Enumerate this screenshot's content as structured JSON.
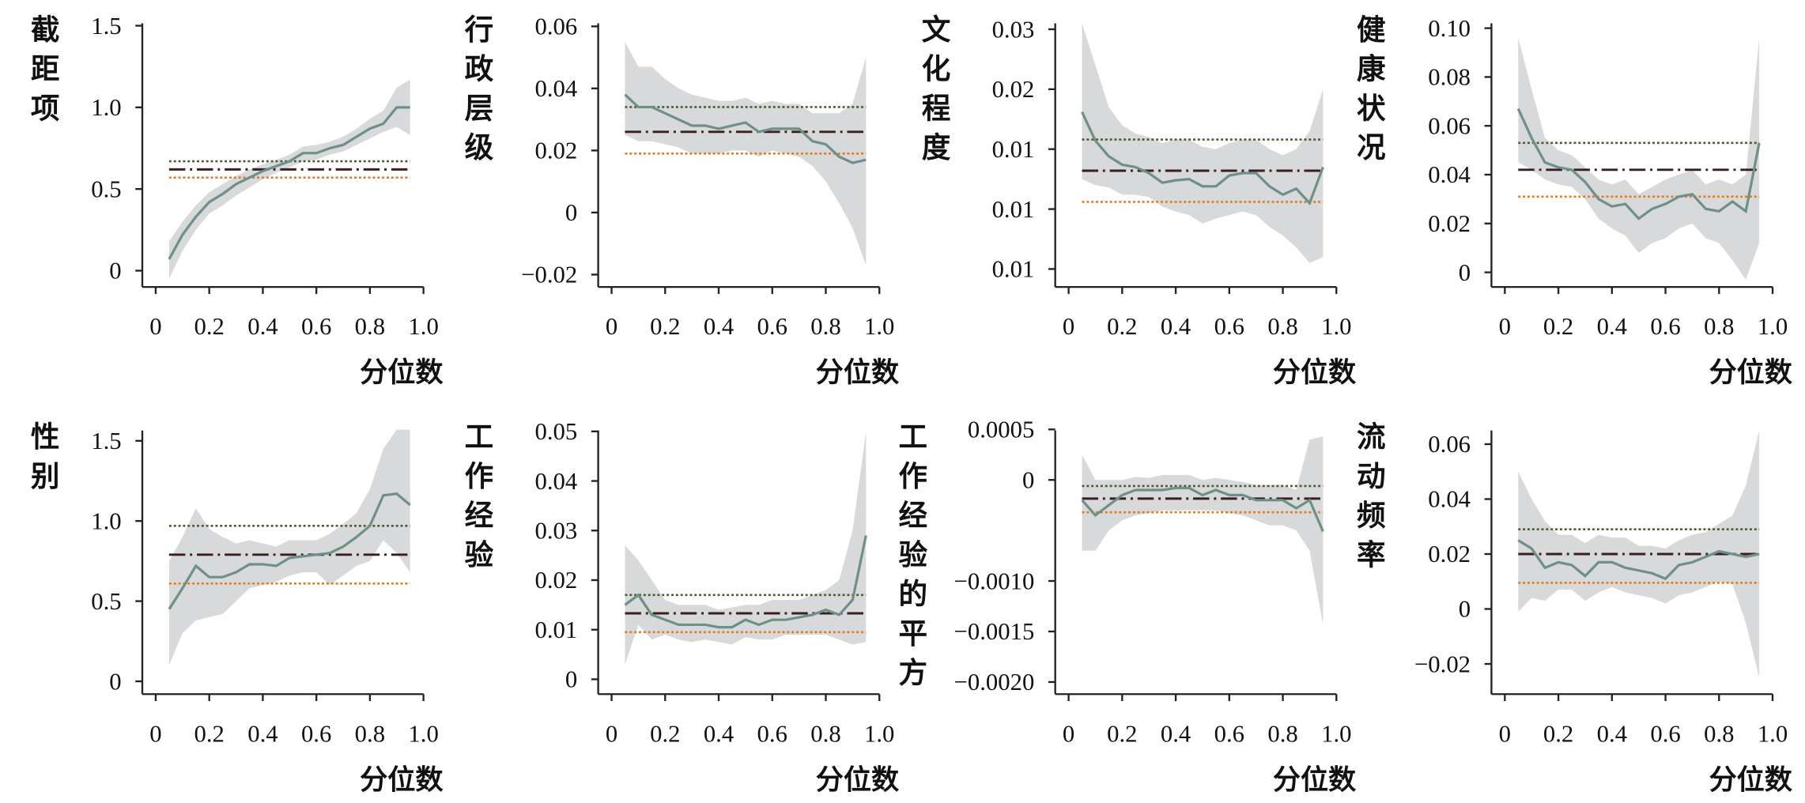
{
  "chart_data": [
    {
      "type": "quantile",
      "ylabel": "截距项",
      "xlabel": "分位数",
      "x": [
        0.05,
        0.1,
        0.15,
        0.2,
        0.25,
        0.3,
        0.35,
        0.4,
        0.45,
        0.5,
        0.55,
        0.6,
        0.65,
        0.7,
        0.75,
        0.8,
        0.85,
        0.9,
        0.95
      ],
      "values": [
        0.07,
        0.22,
        0.33,
        0.42,
        0.47,
        0.53,
        0.57,
        0.61,
        0.64,
        0.67,
        0.72,
        0.72,
        0.75,
        0.77,
        0.82,
        0.87,
        0.9,
        1.0,
        1.0
      ],
      "lower": [
        -0.05,
        0.12,
        0.25,
        0.35,
        0.4,
        0.46,
        0.51,
        0.56,
        0.6,
        0.63,
        0.67,
        0.68,
        0.71,
        0.73,
        0.77,
        0.81,
        0.85,
        0.88,
        0.83
      ],
      "upper": [
        0.18,
        0.3,
        0.4,
        0.48,
        0.53,
        0.58,
        0.62,
        0.65,
        0.68,
        0.71,
        0.76,
        0.77,
        0.79,
        0.82,
        0.87,
        0.93,
        0.98,
        1.12,
        1.17
      ],
      "ols": 0.62,
      "ols_lower": 0.57,
      "ols_upper": 0.67,
      "xlim": [
        -0.05,
        1.0
      ],
      "xticks": [
        0,
        0.2,
        0.4,
        0.6,
        0.8,
        {
          "value": 1,
          "label": "1.0"
        }
      ],
      "ylim": [
        -0.1,
        1.515
      ],
      "yticks": [
        0,
        0.5,
        {
          "value": 1,
          "label": "1.0"
        },
        1.5
      ],
      "colors": {
        "line": "#6f9088",
        "band": "#d8d9db",
        "ols": "#3a1f22",
        "ols_dot": "#c0392b",
        "ols_upper": "#4d5a2a",
        "ols_lower": "#e07b1f"
      }
    },
    {
      "type": "quantile",
      "ylabel": "行政层级",
      "xlabel": "分位数",
      "x": [
        0.05,
        0.1,
        0.15,
        0.2,
        0.25,
        0.3,
        0.35,
        0.4,
        0.45,
        0.5,
        0.55,
        0.6,
        0.65,
        0.7,
        0.75,
        0.8,
        0.85,
        0.9,
        0.95
      ],
      "values": [
        0.038,
        0.034,
        0.034,
        0.032,
        0.03,
        0.028,
        0.028,
        0.027,
        0.028,
        0.029,
        0.026,
        0.027,
        0.027,
        0.027,
        0.023,
        0.022,
        0.018,
        0.016,
        0.017
      ],
      "lower": [
        0.025,
        0.023,
        0.023,
        0.022,
        0.021,
        0.019,
        0.019,
        0.019,
        0.02,
        0.02,
        0.018,
        0.02,
        0.019,
        0.018,
        0.015,
        0.01,
        0.003,
        -0.005,
        -0.017
      ],
      "upper": [
        0.055,
        0.047,
        0.047,
        0.043,
        0.04,
        0.038,
        0.037,
        0.036,
        0.036,
        0.037,
        0.035,
        0.036,
        0.035,
        0.035,
        0.032,
        0.032,
        0.032,
        0.035,
        0.05
      ],
      "ols": 0.026,
      "ols_lower": 0.019,
      "ols_upper": 0.034,
      "xlim": [
        -0.05,
        1.0
      ],
      "xticks": [
        0,
        0.2,
        0.4,
        0.6,
        0.8,
        {
          "value": 1,
          "label": "1.0"
        }
      ],
      "ylim": [
        -0.024,
        0.061
      ],
      "yticks": [
        {
          "value": -0.02,
          "label": "−0.02"
        },
        0,
        0.02,
        0.04,
        0.06
      ],
      "colors": {
        "line": "#6f9088",
        "band": "#d8d9db",
        "ols": "#3a1f22",
        "ols_dot": "#c0392b",
        "ols_upper": "#4d5a2a",
        "ols_lower": "#e07b1f"
      }
    },
    {
      "type": "quantile",
      "ylabel": "文化程度",
      "xlabel": "分位数",
      "x": [
        0.05,
        0.1,
        0.15,
        0.2,
        0.25,
        0.3,
        0.35,
        0.4,
        0.45,
        0.5,
        0.55,
        0.6,
        0.65,
        0.7,
        0.75,
        0.8,
        0.85,
        0.9,
        0.95
      ],
      "values": [
        0.0181,
        0.0157,
        0.0144,
        0.0137,
        0.0135,
        0.013,
        0.0122,
        0.0124,
        0.0125,
        0.0119,
        0.0119,
        0.0128,
        0.013,
        0.013,
        0.0119,
        0.0112,
        0.0117,
        0.0105,
        0.0135
      ],
      "lower": [
        0.0125,
        0.012,
        0.0118,
        0.0112,
        0.0112,
        0.011,
        0.0102,
        0.0098,
        0.0095,
        0.0088,
        0.0092,
        0.0095,
        0.0098,
        0.0095,
        0.0085,
        0.0078,
        0.0068,
        0.0055,
        0.006
      ],
      "upper": [
        0.0255,
        0.022,
        0.0185,
        0.017,
        0.0163,
        0.016,
        0.0155,
        0.0158,
        0.0158,
        0.0152,
        0.015,
        0.0155,
        0.0158,
        0.0158,
        0.015,
        0.0145,
        0.015,
        0.0165,
        0.02
      ],
      "ols": 0.0132,
      "ols_lower": 0.0106,
      "ols_upper": 0.0158,
      "xlim": [
        -0.05,
        1.0
      ],
      "xticks": [
        0,
        0.2,
        0.4,
        0.6,
        0.8,
        {
          "value": 1,
          "label": "1.0"
        }
      ],
      "ylim": [
        0.0035,
        0.0255
      ],
      "yticks": [
        {
          "value": 0.005,
          "label": "0.01"
        },
        0.01,
        {
          "value": 0.015,
          "label": "0.01"
        },
        0.02,
        {
          "value": 0.025,
          "label": "0.03"
        }
      ],
      "colors": {
        "line": "#6f9088",
        "band": "#d8d9db",
        "ols": "#3a1f22",
        "ols_dot": "#c0392b",
        "ols_upper": "#4d5a2a",
        "ols_lower": "#e07b1f"
      }
    },
    {
      "type": "quantile",
      "ylabel": "健康状况",
      "xlabel": "分位数",
      "x": [
        0.05,
        0.1,
        0.15,
        0.2,
        0.25,
        0.3,
        0.35,
        0.4,
        0.45,
        0.5,
        0.55,
        0.6,
        0.65,
        0.7,
        0.75,
        0.8,
        0.85,
        0.9,
        0.95
      ],
      "values": [
        0.067,
        0.055,
        0.045,
        0.043,
        0.042,
        0.037,
        0.03,
        0.027,
        0.028,
        0.022,
        0.026,
        0.028,
        0.031,
        0.032,
        0.026,
        0.025,
        0.029,
        0.025,
        0.053
      ],
      "lower": [
        0.045,
        0.042,
        0.038,
        0.036,
        0.035,
        0.03,
        0.022,
        0.018,
        0.015,
        0.008,
        0.012,
        0.014,
        0.018,
        0.02,
        0.014,
        0.012,
        0.005,
        -0.003,
        0.012
      ],
      "upper": [
        0.096,
        0.075,
        0.055,
        0.05,
        0.048,
        0.043,
        0.038,
        0.036,
        0.038,
        0.032,
        0.035,
        0.038,
        0.04,
        0.042,
        0.036,
        0.038,
        0.036,
        0.04,
        0.096
      ],
      "ols": 0.042,
      "ols_lower": 0.031,
      "ols_upper": 0.053,
      "xlim": [
        -0.05,
        1.0
      ],
      "xticks": [
        0,
        0.2,
        0.4,
        0.6,
        0.8,
        {
          "value": 1,
          "label": "1.0"
        }
      ],
      "ylim": [
        -0.006,
        0.102
      ],
      "yticks": [
        0,
        0.02,
        0.04,
        0.06,
        0.08,
        {
          "value": 0.1,
          "label": "0.10"
        }
      ],
      "colors": {
        "line": "#6f9088",
        "band": "#d8d9db",
        "ols": "#3a1f22",
        "ols_dot": "#c0392b",
        "ols_upper": "#4d5a2a",
        "ols_lower": "#e07b1f"
      }
    },
    {
      "type": "quantile",
      "ylabel": "性别",
      "xlabel": "分位数",
      "x": [
        0.05,
        0.1,
        0.15,
        0.2,
        0.25,
        0.3,
        0.35,
        0.4,
        0.45,
        0.5,
        0.55,
        0.6,
        0.65,
        0.7,
        0.75,
        0.8,
        0.85,
        0.9,
        0.95
      ],
      "values": [
        0.45,
        0.58,
        0.72,
        0.65,
        0.65,
        0.68,
        0.73,
        0.73,
        0.72,
        0.77,
        0.78,
        0.79,
        0.8,
        0.84,
        0.9,
        0.97,
        1.16,
        1.17,
        1.1
      ],
      "lower": [
        0.1,
        0.3,
        0.38,
        0.4,
        0.42,
        0.5,
        0.58,
        0.6,
        0.62,
        0.66,
        0.68,
        0.68,
        0.6,
        0.66,
        0.72,
        0.75,
        0.88,
        0.8,
        0.68
      ],
      "upper": [
        0.75,
        0.9,
        1.08,
        0.95,
        0.9,
        0.86,
        0.88,
        0.86,
        0.84,
        0.88,
        0.88,
        0.88,
        0.92,
        0.98,
        1.05,
        1.2,
        1.45,
        1.57,
        1.57
      ],
      "ols": 0.79,
      "ols_lower": 0.61,
      "ols_upper": 0.97,
      "xlim": [
        -0.05,
        1.0
      ],
      "xticks": [
        0,
        0.2,
        0.4,
        0.6,
        0.8,
        {
          "value": 1,
          "label": "1.0"
        }
      ],
      "ylim": [
        -0.08,
        1.565
      ],
      "yticks": [
        0,
        0.5,
        {
          "value": 1,
          "label": "1.0"
        },
        1.5
      ],
      "colors": {
        "line": "#6f9088",
        "band": "#d8d9db",
        "ols": "#3a1f22",
        "ols_dot": "#c0392b",
        "ols_upper": "#4d5a2a",
        "ols_lower": "#e07b1f"
      }
    },
    {
      "type": "quantile",
      "ylabel": "工作经验",
      "xlabel": "分位数",
      "x": [
        0.05,
        0.1,
        0.15,
        0.2,
        0.25,
        0.3,
        0.35,
        0.4,
        0.45,
        0.5,
        0.55,
        0.6,
        0.65,
        0.7,
        0.75,
        0.8,
        0.85,
        0.9,
        0.95
      ],
      "values": [
        0.015,
        0.017,
        0.013,
        0.012,
        0.011,
        0.011,
        0.011,
        0.0105,
        0.0105,
        0.012,
        0.011,
        0.012,
        0.012,
        0.0125,
        0.013,
        0.014,
        0.013,
        0.016,
        0.029
      ],
      "lower": [
        0.003,
        0.011,
        0.008,
        0.009,
        0.008,
        0.0075,
        0.008,
        0.0075,
        0.007,
        0.0085,
        0.008,
        0.008,
        0.009,
        0.009,
        0.009,
        0.009,
        0.008,
        0.007,
        0.0075
      ],
      "upper": [
        0.027,
        0.024,
        0.02,
        0.016,
        0.015,
        0.015,
        0.015,
        0.014,
        0.0145,
        0.015,
        0.015,
        0.016,
        0.016,
        0.016,
        0.017,
        0.018,
        0.02,
        0.03,
        0.05
      ],
      "ols": 0.0133,
      "ols_lower": 0.0095,
      "ols_upper": 0.017,
      "xlim": [
        -0.05,
        1.0
      ],
      "xticks": [
        0,
        0.2,
        0.4,
        0.6,
        0.8,
        {
          "value": 1,
          "label": "1.0"
        }
      ],
      "ylim": [
        -0.003,
        0.0502
      ],
      "yticks": [
        0,
        0.01,
        0.02,
        0.03,
        0.04,
        0.05
      ],
      "colors": {
        "line": "#6f9088",
        "band": "#d8d9db",
        "ols": "#3a1f22",
        "ols_dot": "#c0392b",
        "ols_upper": "#4d5a2a",
        "ols_lower": "#e07b1f"
      }
    },
    {
      "type": "quantile",
      "ylabel": "工作经验的平方",
      "xlabel": "分位数",
      "x": [
        0.05,
        0.1,
        0.15,
        0.2,
        0.25,
        0.3,
        0.35,
        0.4,
        0.45,
        0.5,
        0.55,
        0.6,
        0.65,
        0.7,
        0.75,
        0.8,
        0.85,
        0.9,
        0.95
      ],
      "values": [
        -0.0002,
        -0.00035,
        -0.00025,
        -0.00015,
        -0.0001,
        -0.0001,
        -0.0001,
        -8e-05,
        -8e-05,
        -0.00015,
        -0.0001,
        -0.00015,
        -0.00015,
        -0.0002,
        -0.0002,
        -0.0002,
        -0.00028,
        -0.0002,
        -0.00051
      ],
      "lower": [
        -0.0007,
        -0.0007,
        -0.0005,
        -0.0004,
        -0.00035,
        -0.00033,
        -0.0003,
        -0.0003,
        -0.0003,
        -0.0003,
        -0.0003,
        -0.00033,
        -0.00035,
        -0.0004,
        -0.00045,
        -0.00045,
        -0.0005,
        -0.0007,
        -0.00143
      ],
      "upper": [
        0.00025,
        0,
        0,
        0,
        3e-05,
        2e-05,
        5e-05,
        5e-05,
        5e-05,
        0,
        2e-05,
        0,
        -2e-05,
        -5e-05,
        -5e-05,
        -5e-05,
        -0.0001,
        0.0004,
        0.00043
      ],
      "ols": -0.000185,
      "ols_lower": -0.00032,
      "ols_upper": -6e-05,
      "xlim": [
        -0.05,
        1.0
      ],
      "xticks": [
        0,
        0.2,
        0.4,
        0.6,
        0.8,
        {
          "value": 1,
          "label": "1.0"
        }
      ],
      "ylim": [
        -0.00212,
        0.00049
      ],
      "yticks": [
        {
          "value": -0.002,
          "label": "−0.0020"
        },
        {
          "value": -0.0015,
          "label": "−0.0015"
        },
        {
          "value": -0.001,
          "label": "−0.0010"
        },
        0,
        0.0005
      ],
      "colors": {
        "line": "#6f9088",
        "band": "#d8d9db",
        "ols": "#3a1f22",
        "ols_dot": "#c0392b",
        "ols_upper": "#4d5a2a",
        "ols_lower": "#e07b1f"
      }
    },
    {
      "type": "quantile",
      "ylabel": "流动频率",
      "xlabel": "分位数",
      "x": [
        0.05,
        0.1,
        0.15,
        0.2,
        0.25,
        0.3,
        0.35,
        0.4,
        0.45,
        0.5,
        0.55,
        0.6,
        0.65,
        0.7,
        0.75,
        0.8,
        0.85,
        0.9,
        0.95
      ],
      "values": [
        0.025,
        0.022,
        0.015,
        0.017,
        0.016,
        0.012,
        0.017,
        0.017,
        0.015,
        0.014,
        0.013,
        0.011,
        0.016,
        0.017,
        0.019,
        0.021,
        0.02,
        0.019,
        0.02
      ],
      "lower": [
        -0.001,
        0.004,
        0.003,
        0.007,
        0.007,
        0.003,
        0.006,
        0.008,
        0.006,
        0.005,
        0.004,
        0.002,
        0.005,
        0.006,
        0.008,
        0.01,
        0.009,
        -0.005,
        -0.025
      ],
      "upper": [
        0.05,
        0.04,
        0.032,
        0.027,
        0.027,
        0.024,
        0.027,
        0.026,
        0.026,
        0.023,
        0.023,
        0.022,
        0.025,
        0.027,
        0.028,
        0.031,
        0.034,
        0.045,
        0.065
      ],
      "ols": 0.02,
      "ols_lower": 0.0095,
      "ols_upper": 0.029,
      "xlim": [
        -0.05,
        1.0
      ],
      "xticks": [
        0,
        0.2,
        0.4,
        0.6,
        0.8,
        {
          "value": 1,
          "label": "1.0"
        }
      ],
      "ylim": [
        -0.031,
        0.065
      ],
      "yticks": [
        {
          "value": -0.02,
          "label": "−0.02"
        },
        0,
        0.02,
        0.04,
        0.06
      ],
      "colors": {
        "line": "#6f9088",
        "band": "#d8d9db",
        "ols": "#3a1f22",
        "ols_dot": "#c0392b",
        "ols_upper": "#4d5a2a",
        "ols_lower": "#e07b1f"
      }
    }
  ]
}
